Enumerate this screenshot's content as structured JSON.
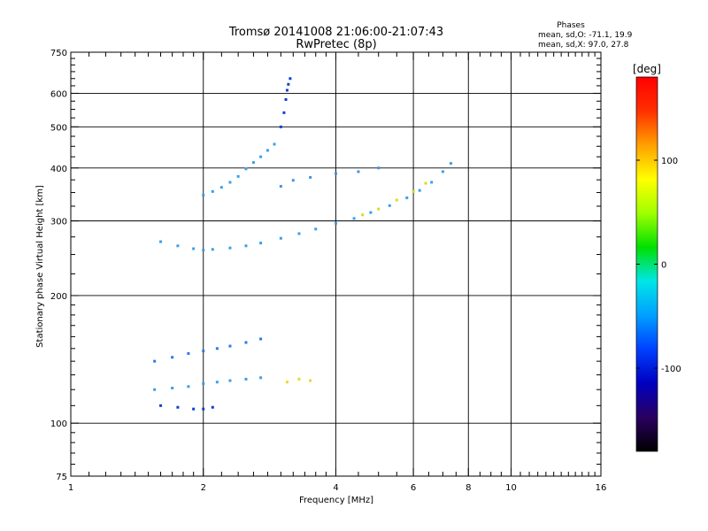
{
  "chart_data": {
    "type": "scatter",
    "title": "Tromsø 20141008 21:06:00-21:07:43",
    "subtitle": "RwPretec (8p)",
    "stats": {
      "heading": "Phases",
      "line_o": "mean, sd,O: -71.1, 19.9",
      "line_x": "mean, sd,X:  97.0, 27.8"
    },
    "xlabel": "Frequency [MHz]",
    "ylabel": "Stationary phase Virtual Height [km]",
    "xscale": "log2",
    "yscale": "log",
    "xlim": [
      1,
      16
    ],
    "ylim": [
      75,
      750
    ],
    "xticks": [
      1,
      2,
      4,
      6,
      8,
      10,
      16
    ],
    "xtick_labels": [
      "1",
      "2",
      "4",
      "6",
      "8",
      "10",
      "16"
    ],
    "yticks": [
      75,
      100,
      200,
      300,
      400,
      500,
      600,
      750
    ],
    "ytick_labels": [
      "75",
      "100",
      "200",
      "300",
      "400",
      "500",
      "600",
      "750"
    ],
    "grid_x": [
      2,
      4,
      6,
      8,
      10
    ],
    "grid_y": [
      100,
      200,
      300,
      400,
      500,
      600
    ],
    "grid": true,
    "colorbar": {
      "label": "[deg]",
      "range": [
        -180,
        180
      ],
      "ticks": [
        100,
        0,
        -100
      ],
      "tick_labels": [
        "100",
        "0",
        "-100"
      ],
      "colormap": [
        "#000000",
        "#2a0060",
        "#0000c0",
        "#0040ff",
        "#00a0ff",
        "#00e6e6",
        "#00e000",
        "#a0ff00",
        "#ffff00",
        "#ffa000",
        "#ff3000",
        "#ff0000"
      ]
    },
    "series": [
      {
        "color": "#3aa0e8",
        "x": [
          1.6,
          1.75,
          1.9,
          2.0,
          2.1,
          2.3,
          2.5,
          2.7,
          3.0,
          3.3,
          3.6,
          4.0,
          4.4,
          4.8,
          5.3,
          5.8,
          6.2,
          6.6,
          7.0,
          7.3
        ],
        "y": [
          268,
          262,
          258,
          256,
          257,
          259,
          262,
          266,
          273,
          280,
          287,
          296,
          304,
          314,
          326,
          340,
          354,
          370,
          392,
          410
        ]
      },
      {
        "color": "#3aa0e8",
        "x": [
          2.0,
          2.1,
          2.2,
          2.3,
          2.4,
          2.5,
          2.6,
          2.7,
          2.8,
          2.9
        ],
        "y": [
          345,
          352,
          360,
          370,
          382,
          398,
          412,
          425,
          440,
          455
        ]
      },
      {
        "color": "#1040d0",
        "x": [
          3.0,
          3.05,
          3.08,
          3.1,
          3.12,
          3.15
        ],
        "y": [
          500,
          540,
          580,
          610,
          630,
          650
        ]
      },
      {
        "color": "#2a7ae8",
        "x": [
          1.55,
          1.7,
          1.85,
          2.0,
          2.15,
          2.3,
          2.5,
          2.7
        ],
        "y": [
          140,
          143,
          146,
          148,
          150,
          152,
          155,
          158
        ]
      },
      {
        "color": "#3aa0e8",
        "x": [
          1.55,
          1.7,
          1.85,
          2.0,
          2.15,
          2.3,
          2.5,
          2.7
        ],
        "y": [
          120,
          121,
          122,
          124,
          125,
          126,
          127,
          128
        ]
      },
      {
        "color": "#1040d0",
        "x": [
          1.6,
          1.75,
          1.9,
          2.0,
          2.1
        ],
        "y": [
          110,
          109,
          108,
          108,
          109
        ]
      },
      {
        "color": "#d0e020",
        "x": [
          4.6,
          5.0,
          5.5,
          6.0,
          6.4
        ],
        "y": [
          310,
          320,
          336,
          352,
          368
        ]
      },
      {
        "color": "#e8d830",
        "x": [
          3.1,
          3.3,
          3.5
        ],
        "y": [
          125,
          127,
          126
        ]
      },
      {
        "color": "#4a90e0",
        "x": [
          3.0,
          3.2,
          3.5,
          4.0,
          4.5,
          5.0
        ],
        "y": [
          362,
          374,
          380,
          388,
          392,
          400
        ]
      }
    ]
  }
}
